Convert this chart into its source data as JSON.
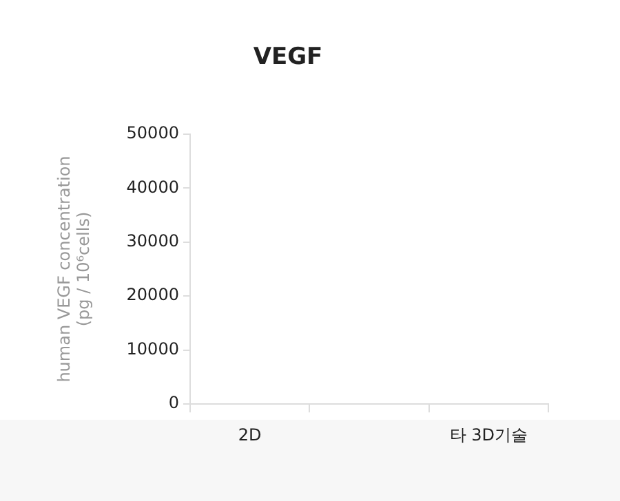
{
  "chart_data": {
    "type": "bar",
    "title": "VEGF",
    "ylabel": "human VEGF concentration\n(pg / 10⁶cells)",
    "categories": [
      "2D",
      null,
      "타 3D기술"
    ],
    "values": [
      null,
      null,
      null
    ],
    "ylim": [
      0,
      50000
    ],
    "yticks": [
      0,
      10000,
      20000,
      30000,
      40000,
      50000
    ],
    "grid": false,
    "legend": false
  }
}
